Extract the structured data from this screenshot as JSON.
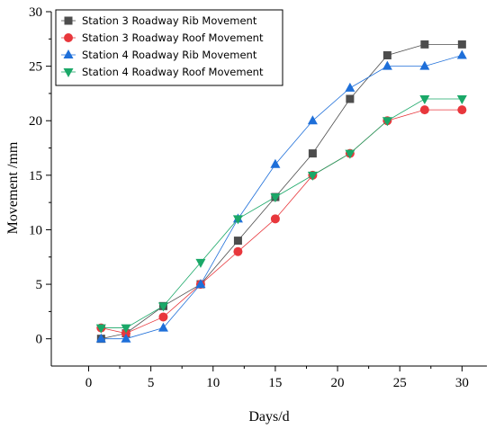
{
  "chart_data": {
    "type": "line",
    "title": "",
    "xlabel": "Days/d",
    "ylabel": "Movement /mm",
    "xlim": [
      -3,
      32
    ],
    "ylim": [
      -2.5,
      30
    ],
    "xticks": [
      0,
      5,
      10,
      15,
      20,
      25,
      30
    ],
    "yticks": [
      0,
      5,
      10,
      15,
      20,
      25,
      30
    ],
    "xtick_labels": [
      "0",
      "5",
      "10",
      "15",
      "20",
      "25",
      "30"
    ],
    "ytick_labels": [
      "0",
      "5",
      "10",
      "15",
      "20",
      "25",
      "30"
    ],
    "legend_position": "top-left",
    "grid": false,
    "x": [
      1,
      3,
      6,
      9,
      12,
      15,
      18,
      21,
      24,
      27,
      30
    ],
    "series": [
      {
        "name": "Station 3 Roadway Rib Movement",
        "color": "#4d4d4d",
        "marker": "square",
        "values": [
          0,
          0.5,
          3,
          5,
          9,
          13,
          17,
          22,
          26,
          27,
          27
        ]
      },
      {
        "name": "Station 3 Roadway Roof Movement",
        "color": "#e8373c",
        "marker": "circle",
        "values": [
          1,
          0.5,
          2,
          5,
          8,
          11,
          15,
          17,
          20,
          21,
          21
        ]
      },
      {
        "name": "Station 4 Roadway Rib Movement",
        "color": "#1e6fd9",
        "marker": "triangle-up",
        "values": [
          0,
          0,
          1,
          5,
          11,
          16,
          20,
          23,
          25,
          25,
          26
        ]
      },
      {
        "name": "Station 4 Roadway Roof Movement",
        "color": "#1aa868",
        "marker": "triangle-down",
        "values": [
          1,
          1,
          3,
          7,
          11,
          13,
          15,
          17,
          20,
          22,
          22
        ]
      }
    ]
  }
}
